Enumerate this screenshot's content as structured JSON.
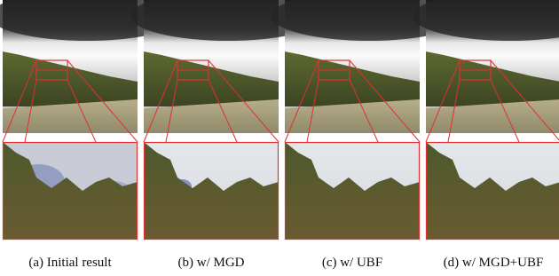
{
  "captions": [
    "(a) Initial result",
    "(b) w/ MGD",
    "(c) w/ UBF",
    "(d) w/ MGD+UBF"
  ]
}
